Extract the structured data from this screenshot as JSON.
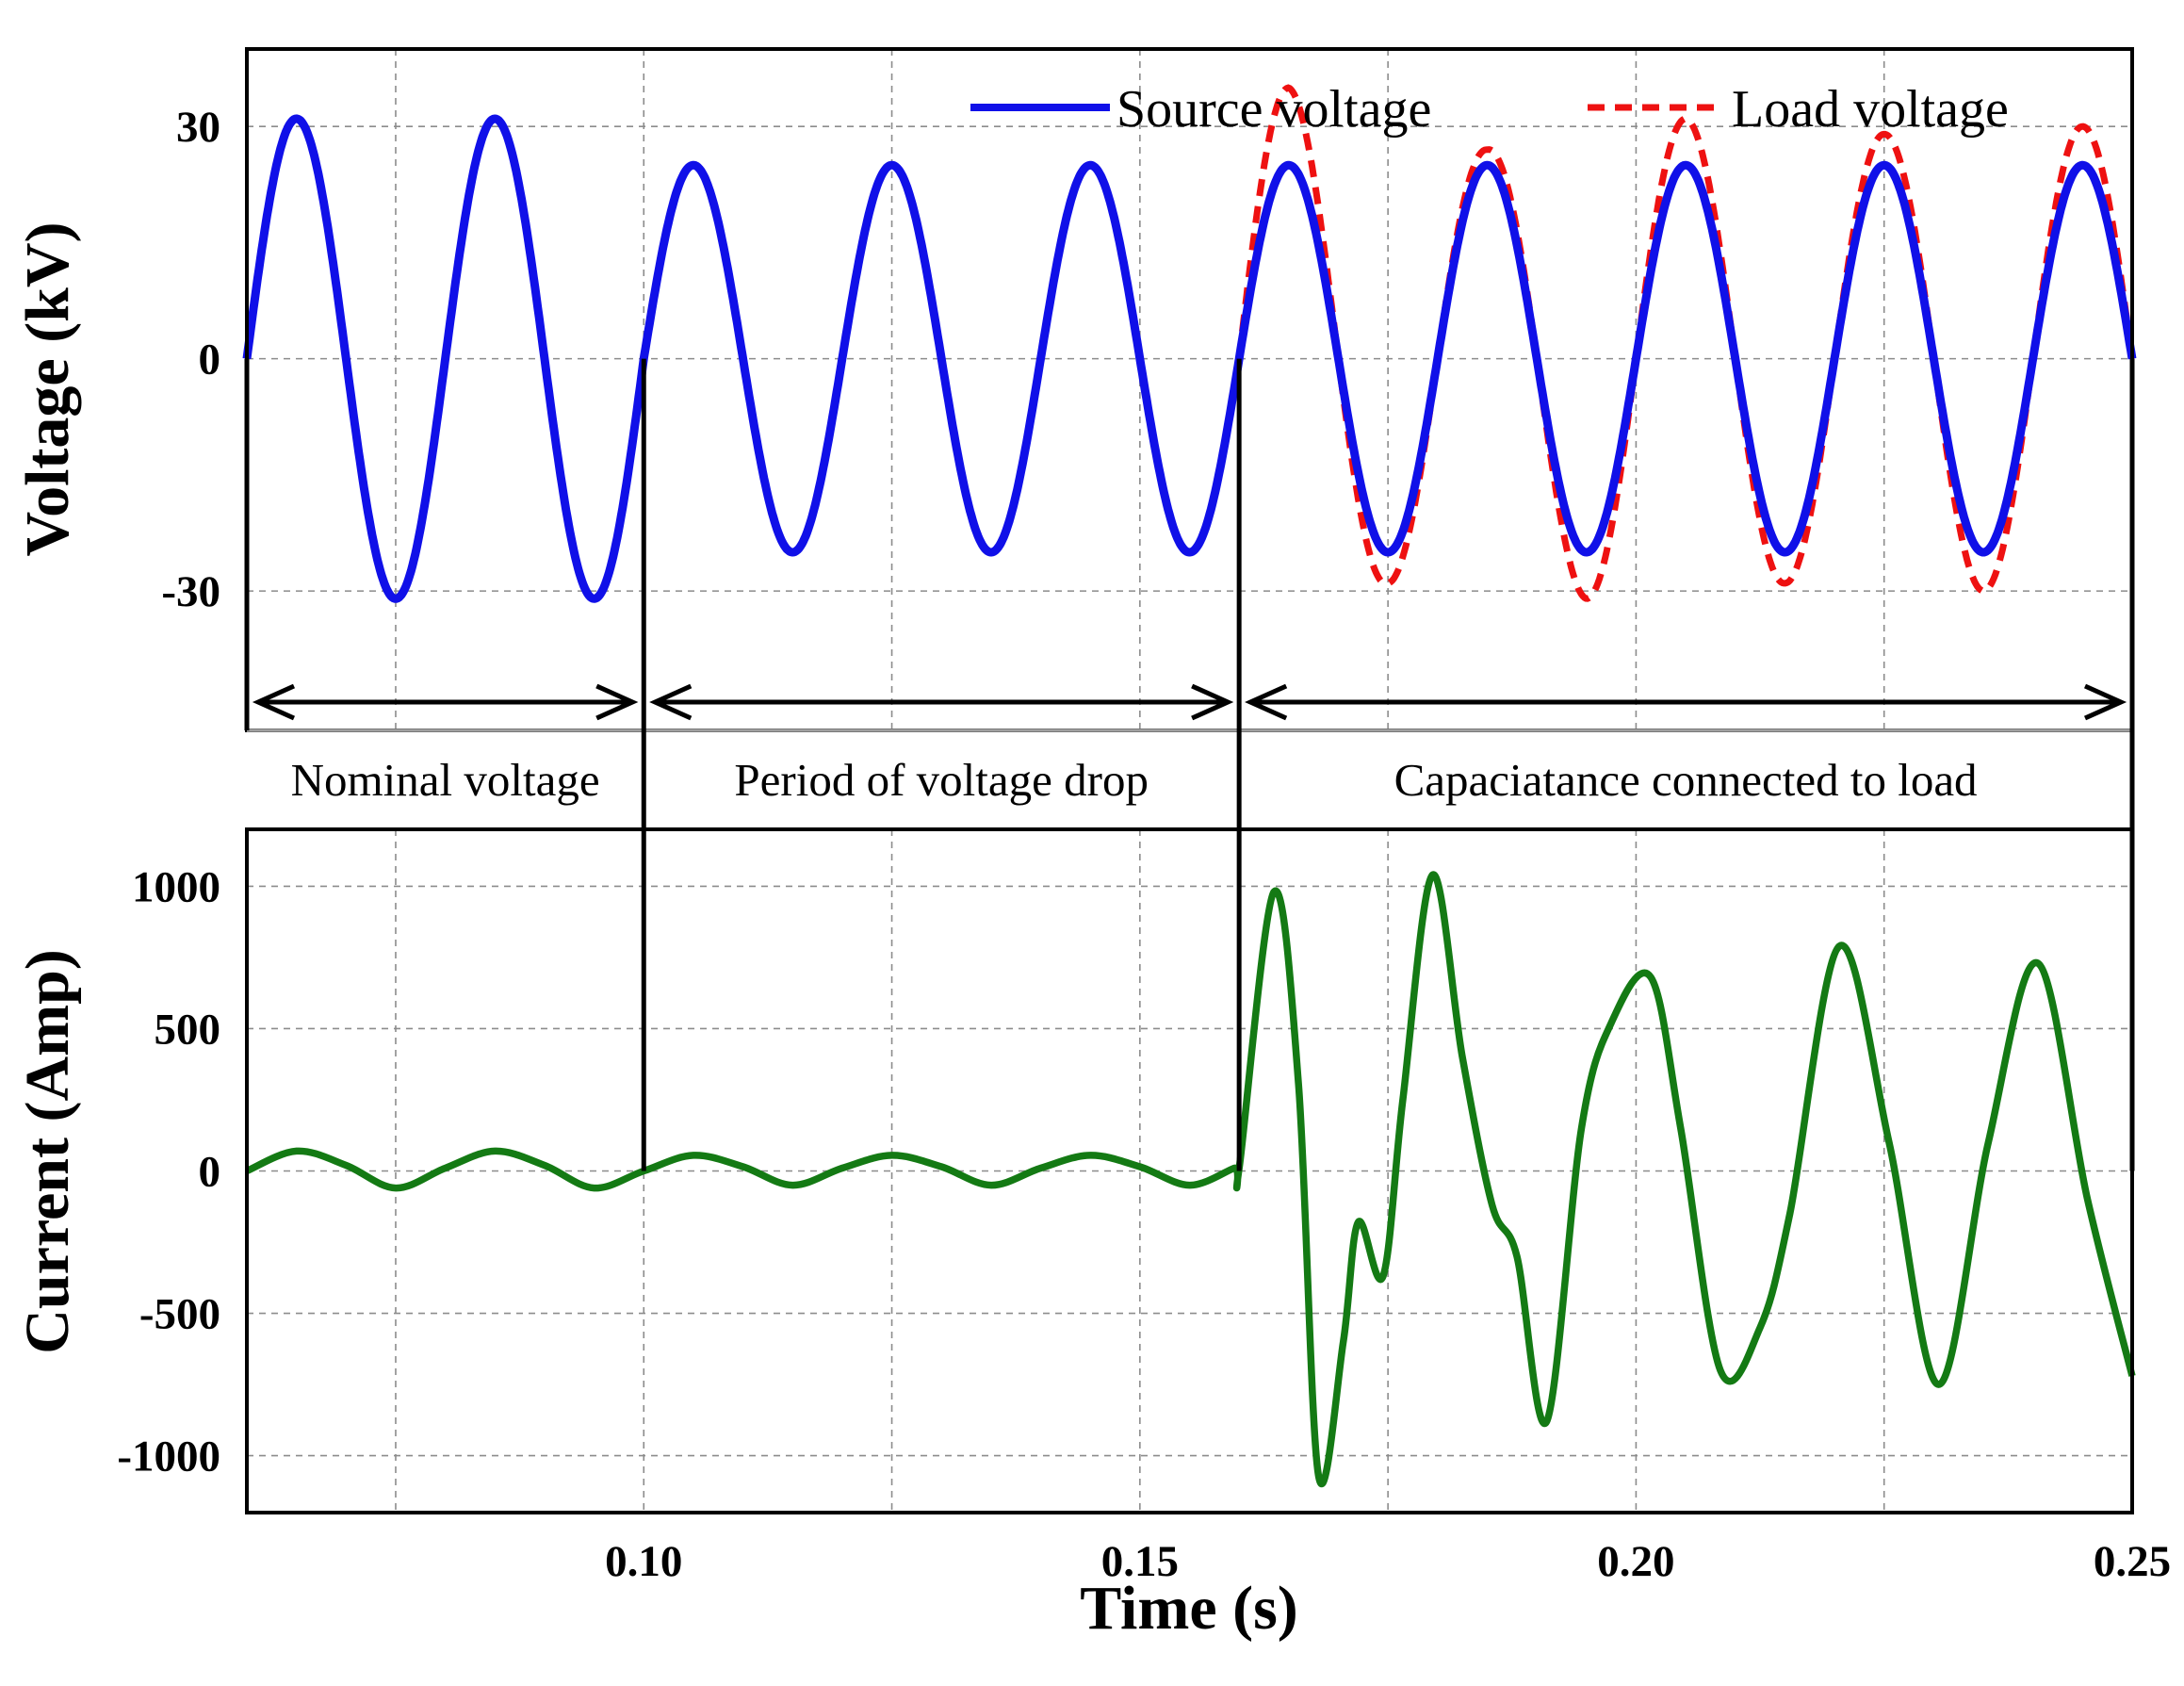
{
  "chart_data": {
    "type": "line",
    "xlabel": "Time (s)",
    "x_ticks": [
      "0.10",
      "0.15",
      "0.20",
      "0.25"
    ],
    "xlim": [
      0.06,
      0.25
    ],
    "panels": [
      {
        "id": "voltage",
        "ylabel": "Voltage (kV)",
        "ylim": [
          -48,
          40
        ],
        "y_ticks": [
          "30",
          "0",
          "-30"
        ],
        "grid": true,
        "legend_position": "top-right",
        "series": [
          {
            "name": "Source voltage",
            "color": "#1010e8",
            "style": "solid",
            "description": "sinusoid, 50 Hz",
            "segments": [
              {
                "t_start": 0.06,
                "t_end": 0.1,
                "amplitude_kv": 31
              },
              {
                "t_start": 0.1,
                "t_end": 0.25,
                "amplitude_kv": 25
              }
            ]
          },
          {
            "name": "Load voltage",
            "color": "#ee1111",
            "style": "dashed",
            "description": "equals source until 0.16 s, then overshoot",
            "peaks": [
              {
                "t": 0.165,
                "v": 35
              },
              {
                "t": 0.175,
                "v": -29
              },
              {
                "t": 0.185,
                "v": 27
              },
              {
                "t": 0.195,
                "v": -31
              },
              {
                "t": 0.205,
                "v": 31
              },
              {
                "t": 0.215,
                "v": -29
              },
              {
                "t": 0.225,
                "v": 29
              },
              {
                "t": 0.235,
                "v": -30
              },
              {
                "t": 0.245,
                "v": 30
              }
            ]
          }
        ]
      },
      {
        "id": "current",
        "ylabel": "Current (Amp)",
        "ylim": [
          -1200,
          1200
        ],
        "y_ticks": [
          "1000",
          "500",
          "0",
          "-500",
          "-1000"
        ],
        "grid": true,
        "series": [
          {
            "name": "Current",
            "color": "#147a14",
            "style": "solid",
            "points": [
              [
                0.06,
                0
              ],
              [
                0.065,
                70
              ],
              [
                0.07,
                20
              ],
              [
                0.075,
                -60
              ],
              [
                0.08,
                10
              ],
              [
                0.085,
                70
              ],
              [
                0.09,
                20
              ],
              [
                0.095,
                -60
              ],
              [
                0.1,
                0
              ],
              [
                0.105,
                55
              ],
              [
                0.11,
                15
              ],
              [
                0.115,
                -50
              ],
              [
                0.12,
                10
              ],
              [
                0.125,
                55
              ],
              [
                0.13,
                15
              ],
              [
                0.135,
                -50
              ],
              [
                0.14,
                10
              ],
              [
                0.145,
                55
              ],
              [
                0.15,
                15
              ],
              [
                0.155,
                -50
              ],
              [
                0.1595,
                10
              ],
              [
                0.16,
                10
              ],
              [
                0.1635,
                980
              ],
              [
                0.166,
                300
              ],
              [
                0.168,
                -1070
              ],
              [
                0.1705,
                -600
              ],
              [
                0.172,
                -180
              ],
              [
                0.1745,
                -370
              ],
              [
                0.1765,
                250
              ],
              [
                0.1795,
                1040
              ],
              [
                0.1825,
                400
              ],
              [
                0.1855,
                -120
              ],
              [
                0.188,
                -300
              ],
              [
                0.191,
                -880
              ],
              [
                0.1945,
                150
              ],
              [
                0.1975,
                520
              ],
              [
                0.2015,
                680
              ],
              [
                0.2045,
                150
              ],
              [
                0.2085,
                -700
              ],
              [
                0.2125,
                -550
              ],
              [
                0.2155,
                -150
              ],
              [
                0.2205,
                790
              ],
              [
                0.2255,
                100
              ],
              [
                0.2305,
                -750
              ],
              [
                0.2355,
                100
              ],
              [
                0.2405,
                730
              ],
              [
                0.2455,
                -100
              ],
              [
                0.25,
                -720
              ]
            ]
          }
        ]
      }
    ],
    "event_markers": [
      {
        "t": 0.1
      },
      {
        "t": 0.16
      }
    ],
    "region_labels": [
      {
        "t_start": 0.06,
        "t_end": 0.1,
        "text": "Nominal voltage"
      },
      {
        "t_start": 0.1,
        "t_end": 0.16,
        "text": "Period of voltage drop"
      },
      {
        "t_start": 0.16,
        "t_end": 0.25,
        "text": "Capaciatance connected to load"
      }
    ]
  }
}
